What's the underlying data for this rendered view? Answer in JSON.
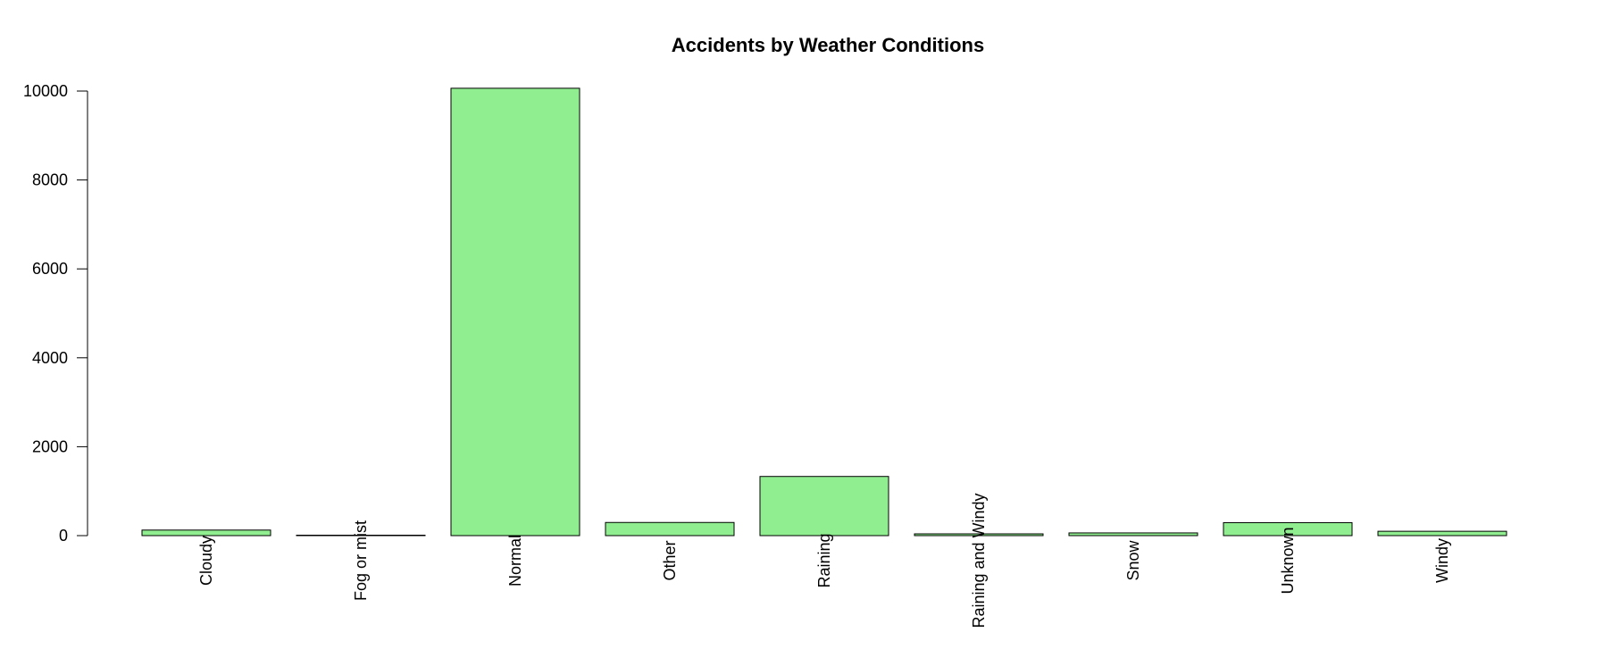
{
  "chart_data": {
    "type": "bar",
    "title": "Accidents by Weather Conditions",
    "xlabel": "",
    "ylabel": "",
    "categories": [
      "Cloudy",
      "Fog or mist",
      "Normal",
      "Other",
      "Raining",
      "Raining and Windy",
      "Snow",
      "Unknown",
      "Windy"
    ],
    "values": [
      125,
      10,
      10063,
      296,
      1331,
      40,
      61,
      292,
      98
    ],
    "yticks": [
      "0",
      "2000",
      "4000",
      "6000",
      "8000",
      "10000"
    ],
    "ylim": [
      0,
      10000
    ],
    "grid": false,
    "legend": "none",
    "colors": {
      "bar_fill": "#90EE90",
      "bar_stroke": "#000000",
      "axis": "#000000"
    }
  }
}
